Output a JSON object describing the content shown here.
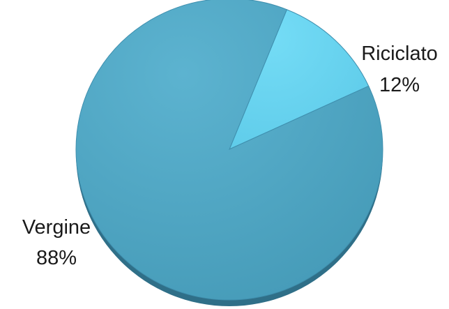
{
  "chart_data": {
    "type": "pie",
    "title": "",
    "slices": [
      {
        "name": "Riciclato",
        "label": "Riciclato",
        "value_label": "12%",
        "value": 12,
        "color": "#6bd6f2"
      },
      {
        "name": "Vergine",
        "label": "Vergine",
        "value_label": "88%",
        "value": 88,
        "color": "#4ea7c4"
      }
    ],
    "legend": "none",
    "data_labels": "outside, category name and percentage"
  }
}
